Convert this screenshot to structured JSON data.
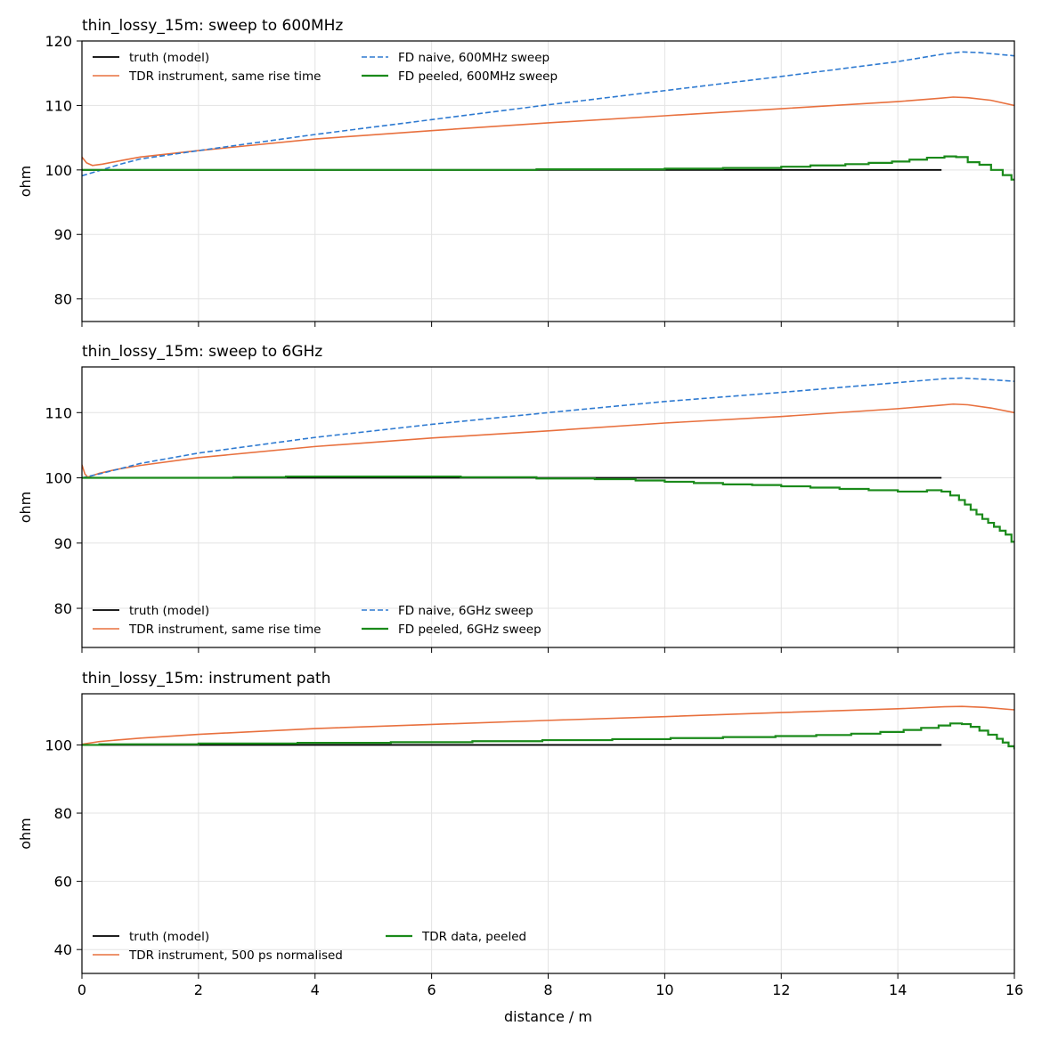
{
  "figure": {
    "xlabel": "distance / m",
    "colors": {
      "truth": "#000000",
      "tdr": "#e8703e",
      "fd_naive": "#2e7ad1",
      "fd_peeled": "#1a8a1a"
    }
  },
  "chart_data": [
    {
      "type": "line",
      "title": "thin_lossy_15m: sweep to 600MHz",
      "xlabel": "",
      "ylabel": "ohm",
      "xlim": [
        0,
        16
      ],
      "ylim": [
        76.5,
        120
      ],
      "xticks": [
        0,
        2,
        4,
        6,
        8,
        10,
        12,
        14,
        16
      ],
      "yticks": [
        80,
        90,
        100,
        110,
        120
      ],
      "show_xtick_labels": false,
      "grid": true,
      "legend": "top-left",
      "series": [
        {
          "name": "truth (model)",
          "key": "truth",
          "style": "solid",
          "width": 1.8,
          "points": [
            [
              0,
              100
            ],
            [
              14.75,
              100
            ]
          ]
        },
        {
          "name": "TDR instrument, same rise time",
          "key": "tdr",
          "style": "solid",
          "width": 1.6,
          "points": [
            [
              0,
              102
            ],
            [
              0.08,
              101.1
            ],
            [
              0.18,
              100.7
            ],
            [
              0.35,
              100.9
            ],
            [
              0.7,
              101.5
            ],
            [
              1,
              102
            ],
            [
              2,
              103
            ],
            [
              4,
              104.8
            ],
            [
              6,
              106.1
            ],
            [
              8,
              107.3
            ],
            [
              10,
              108.4
            ],
            [
              12,
              109.5
            ],
            [
              14,
              110.6
            ],
            [
              14.7,
              111.1
            ],
            [
              14.95,
              111.3
            ],
            [
              15.2,
              111.2
            ],
            [
              15.6,
              110.8
            ],
            [
              16,
              110
            ]
          ]
        },
        {
          "name": "FD naive, 600MHz sweep",
          "key": "fd_naive",
          "style": "dashed",
          "width": 1.6,
          "points": [
            [
              0,
              99.1
            ],
            [
              0.3,
              99.9
            ],
            [
              0.7,
              101
            ],
            [
              1,
              101.7
            ],
            [
              2,
              103
            ],
            [
              4,
              105.5
            ],
            [
              6,
              107.8
            ],
            [
              8,
              110.1
            ],
            [
              10,
              112.3
            ],
            [
              12,
              114.5
            ],
            [
              14,
              116.8
            ],
            [
              14.8,
              118
            ],
            [
              15.1,
              118.3
            ],
            [
              15.4,
              118.2
            ],
            [
              16,
              117.7
            ]
          ]
        },
        {
          "name": "FD peeled, 600MHz sweep",
          "key": "fd_peeled",
          "style": "solid",
          "width": 2.2,
          "step": true,
          "points": [
            [
              0,
              100
            ],
            [
              7.8,
              100
            ],
            [
              7.8,
              100.1
            ],
            [
              10,
              100.1
            ],
            [
              10,
              100.2
            ],
            [
              11,
              100.2
            ],
            [
              11,
              100.3
            ],
            [
              12,
              100.3
            ],
            [
              12,
              100.5
            ],
            [
              12.5,
              100.5
            ],
            [
              12.5,
              100.7
            ],
            [
              13.1,
              100.7
            ],
            [
              13.1,
              100.9
            ],
            [
              13.5,
              100.9
            ],
            [
              13.5,
              101.1
            ],
            [
              13.9,
              101.1
            ],
            [
              13.9,
              101.3
            ],
            [
              14.2,
              101.3
            ],
            [
              14.2,
              101.6
            ],
            [
              14.5,
              101.6
            ],
            [
              14.5,
              101.9
            ],
            [
              14.8,
              101.9
            ],
            [
              14.8,
              102.1
            ],
            [
              15,
              102.1
            ],
            [
              15,
              102
            ],
            [
              15.2,
              102
            ],
            [
              15.2,
              101.2
            ],
            [
              15.4,
              101.2
            ],
            [
              15.4,
              100.8
            ],
            [
              15.6,
              100.8
            ],
            [
              15.6,
              100
            ],
            [
              15.8,
              100
            ],
            [
              15.8,
              99.2
            ],
            [
              15.95,
              99.2
            ],
            [
              15.95,
              98.5
            ],
            [
              16,
              98.5
            ]
          ]
        }
      ]
    },
    {
      "type": "line",
      "title": "thin_lossy_15m: sweep to 6GHz",
      "xlabel": "",
      "ylabel": "ohm",
      "xlim": [
        0,
        16
      ],
      "ylim": [
        74,
        117
      ],
      "xticks": [
        0,
        2,
        4,
        6,
        8,
        10,
        12,
        14,
        16
      ],
      "yticks": [
        80,
        90,
        100,
        110
      ],
      "show_xtick_labels": false,
      "grid": true,
      "legend": "bottom-left",
      "series": [
        {
          "name": "truth (model)",
          "key": "truth",
          "style": "solid",
          "width": 1.8,
          "points": [
            [
              0,
              100
            ],
            [
              14.75,
              100
            ]
          ]
        },
        {
          "name": "TDR instrument, same rise time",
          "key": "tdr",
          "style": "solid",
          "width": 1.6,
          "points": [
            [
              0,
              102
            ],
            [
              0.05,
              100.6
            ],
            [
              0.1,
              100.1
            ],
            [
              0.3,
              100.7
            ],
            [
              0.6,
              101.3
            ],
            [
              1,
              101.9
            ],
            [
              2,
              103.1
            ],
            [
              4,
              104.8
            ],
            [
              6,
              106.1
            ],
            [
              8,
              107.2
            ],
            [
              10,
              108.4
            ],
            [
              12,
              109.4
            ],
            [
              14,
              110.6
            ],
            [
              14.7,
              111.1
            ],
            [
              14.95,
              111.3
            ],
            [
              15.2,
              111.2
            ],
            [
              15.6,
              110.7
            ],
            [
              16,
              110
            ]
          ]
        },
        {
          "name": "FD naive, 6GHz sweep",
          "key": "fd_naive",
          "style": "dashed",
          "width": 1.6,
          "points": [
            [
              0,
              100
            ],
            [
              0.3,
              100.6
            ],
            [
              0.7,
              101.5
            ],
            [
              1,
              102.2
            ],
            [
              2,
              103.8
            ],
            [
              4,
              106.2
            ],
            [
              6,
              108.2
            ],
            [
              8,
              110
            ],
            [
              10,
              111.7
            ],
            [
              12,
              113.1
            ],
            [
              14,
              114.6
            ],
            [
              14.8,
              115.2
            ],
            [
              15.1,
              115.3
            ],
            [
              15.5,
              115.1
            ],
            [
              16,
              114.8
            ]
          ]
        },
        {
          "name": "FD peeled, 6GHz sweep",
          "key": "fd_peeled",
          "style": "solid",
          "width": 2.2,
          "step": true,
          "points": [
            [
              0,
              100
            ],
            [
              2.6,
              100
            ],
            [
              2.6,
              100.1
            ],
            [
              3.5,
              100.1
            ],
            [
              3.5,
              100.2
            ],
            [
              6.5,
              100.2
            ],
            [
              6.5,
              100.1
            ],
            [
              7.8,
              100.1
            ],
            [
              7.8,
              99.9
            ],
            [
              8.8,
              99.9
            ],
            [
              8.8,
              99.8
            ],
            [
              9.5,
              99.8
            ],
            [
              9.5,
              99.6
            ],
            [
              10,
              99.6
            ],
            [
              10,
              99.4
            ],
            [
              10.5,
              99.4
            ],
            [
              10.5,
              99.2
            ],
            [
              11,
              99.2
            ],
            [
              11,
              99.0
            ],
            [
              11.5,
              99.0
            ],
            [
              11.5,
              98.9
            ],
            [
              12,
              98.9
            ],
            [
              12,
              98.7
            ],
            [
              12.5,
              98.7
            ],
            [
              12.5,
              98.5
            ],
            [
              13,
              98.5
            ],
            [
              13,
              98.3
            ],
            [
              13.5,
              98.3
            ],
            [
              13.5,
              98.1
            ],
            [
              14,
              98.1
            ],
            [
              14,
              97.9
            ],
            [
              14.5,
              97.9
            ],
            [
              14.5,
              98.1
            ],
            [
              14.75,
              98.1
            ],
            [
              14.75,
              97.9
            ],
            [
              14.9,
              97.9
            ],
            [
              14.9,
              97.3
            ],
            [
              15.05,
              97.3
            ],
            [
              15.05,
              96.6
            ],
            [
              15.15,
              96.6
            ],
            [
              15.15,
              95.9
            ],
            [
              15.25,
              95.9
            ],
            [
              15.25,
              95.1
            ],
            [
              15.35,
              95.1
            ],
            [
              15.35,
              94.4
            ],
            [
              15.45,
              94.4
            ],
            [
              15.45,
              93.7
            ],
            [
              15.55,
              93.7
            ],
            [
              15.55,
              93.1
            ],
            [
              15.65,
              93.1
            ],
            [
              15.65,
              92.5
            ],
            [
              15.75,
              92.5
            ],
            [
              15.75,
              91.9
            ],
            [
              15.85,
              91.9
            ],
            [
              15.85,
              91.3
            ],
            [
              15.95,
              91.3
            ],
            [
              15.95,
              90.2
            ],
            [
              16,
              90.2
            ]
          ]
        }
      ]
    },
    {
      "type": "line",
      "title": "thin_lossy_15m: instrument path",
      "xlabel": "distance / m",
      "ylabel": "ohm",
      "xlim": [
        0,
        16
      ],
      "ylim": [
        33,
        115
      ],
      "xticks": [
        0,
        2,
        4,
        6,
        8,
        10,
        12,
        14,
        16
      ],
      "yticks": [
        40,
        60,
        80,
        100
      ],
      "show_xtick_labels": true,
      "grid": true,
      "legend": "bottom-left",
      "series": [
        {
          "name": "truth (model)",
          "key": "truth",
          "style": "solid",
          "width": 1.8,
          "points": [
            [
              0,
              100
            ],
            [
              14.75,
              100
            ]
          ]
        },
        {
          "name": "TDR instrument, 500 ps normalised",
          "key": "tdr",
          "style": "solid",
          "width": 1.6,
          "points": [
            [
              0,
              100.2
            ],
            [
              0.3,
              101
            ],
            [
              1,
              102
            ],
            [
              2,
              103.1
            ],
            [
              4,
              104.8
            ],
            [
              6,
              106
            ],
            [
              8,
              107.2
            ],
            [
              10,
              108.3
            ],
            [
              12,
              109.5
            ],
            [
              14,
              110.6
            ],
            [
              14.8,
              111.2
            ],
            [
              15.1,
              111.3
            ],
            [
              15.5,
              111
            ],
            [
              16,
              110.3
            ]
          ]
        },
        {
          "name": "TDR data, peeled",
          "key": "fd_peeled",
          "style": "solid",
          "width": 2.2,
          "step": true,
          "points": [
            [
              0,
              100
            ],
            [
              0.3,
              100
            ],
            [
              0.3,
              100.2
            ],
            [
              2,
              100.2
            ],
            [
              2,
              100.4
            ],
            [
              3.7,
              100.4
            ],
            [
              3.7,
              100.6
            ],
            [
              5.3,
              100.6
            ],
            [
              5.3,
              100.8
            ],
            [
              6.7,
              100.8
            ],
            [
              6.7,
              101.1
            ],
            [
              7.9,
              101.1
            ],
            [
              7.9,
              101.4
            ],
            [
              9.1,
              101.4
            ],
            [
              9.1,
              101.7
            ],
            [
              10.1,
              101.7
            ],
            [
              10.1,
              102
            ],
            [
              11,
              102
            ],
            [
              11,
              102.3
            ],
            [
              11.9,
              102.3
            ],
            [
              11.9,
              102.6
            ],
            [
              12.6,
              102.6
            ],
            [
              12.6,
              102.9
            ],
            [
              13.2,
              102.9
            ],
            [
              13.2,
              103.3
            ],
            [
              13.7,
              103.3
            ],
            [
              13.7,
              103.8
            ],
            [
              14.1,
              103.8
            ],
            [
              14.1,
              104.4
            ],
            [
              14.4,
              104.4
            ],
            [
              14.4,
              105
            ],
            [
              14.7,
              105
            ],
            [
              14.7,
              105.7
            ],
            [
              14.9,
              105.7
            ],
            [
              14.9,
              106.3
            ],
            [
              15.1,
              106.3
            ],
            [
              15.1,
              106.1
            ],
            [
              15.25,
              106.1
            ],
            [
              15.25,
              105.3
            ],
            [
              15.4,
              105.3
            ],
            [
              15.4,
              104.2
            ],
            [
              15.55,
              104.2
            ],
            [
              15.55,
              103
            ],
            [
              15.7,
              103
            ],
            [
              15.7,
              101.8
            ],
            [
              15.8,
              101.8
            ],
            [
              15.8,
              100.7
            ],
            [
              15.9,
              100.7
            ],
            [
              15.9,
              99.6
            ],
            [
              16,
              99.6
            ],
            [
              16,
              98.7
            ]
          ]
        }
      ]
    }
  ]
}
